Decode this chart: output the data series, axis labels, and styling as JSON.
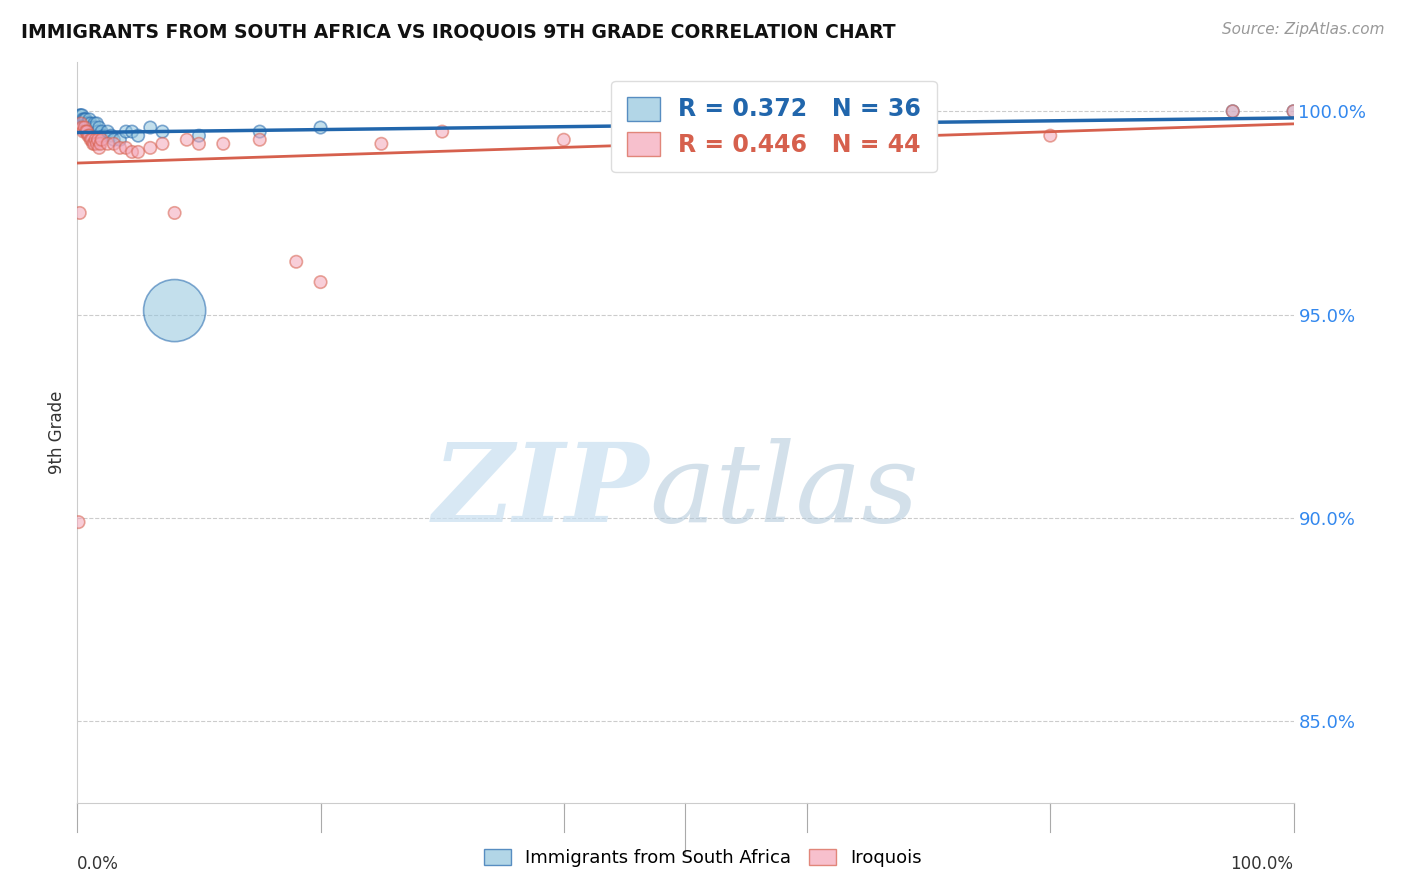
{
  "title": "IMMIGRANTS FROM SOUTH AFRICA VS IROQUOIS 9TH GRADE CORRELATION CHART",
  "source": "Source: ZipAtlas.com",
  "ylabel": "9th Grade",
  "legend_blue_r": "R = 0.372",
  "legend_blue_n": "N = 36",
  "legend_pink_r": "R = 0.446",
  "legend_pink_n": "N = 44",
  "blue_color": "#92c5de",
  "blue_line_color": "#2166ac",
  "pink_color": "#f4a6b8",
  "pink_line_color": "#d6604d",
  "blue_scatter_x": [
    0.2,
    0.3,
    0.4,
    0.4,
    0.5,
    0.6,
    0.7,
    0.7,
    0.8,
    0.9,
    1.0,
    1.1,
    1.2,
    1.3,
    1.4,
    1.5,
    1.6,
    1.7,
    1.8,
    2.0,
    2.2,
    2.5,
    2.8,
    3.0,
    3.5,
    4.0,
    4.5,
    5.0,
    6.0,
    7.0,
    8.0,
    10.0,
    15.0,
    20.0,
    95.0,
    100.0
  ],
  "blue_scatter_y": [
    99.9,
    99.9,
    99.8,
    99.9,
    99.8,
    99.8,
    99.7,
    99.8,
    99.7,
    99.7,
    99.8,
    99.7,
    99.6,
    99.6,
    99.7,
    99.6,
    99.7,
    99.5,
    99.6,
    99.5,
    99.4,
    99.5,
    99.4,
    99.3,
    99.3,
    99.5,
    99.5,
    99.4,
    99.6,
    99.5,
    95.1,
    99.4,
    99.5,
    99.6,
    100.0,
    100.0
  ],
  "blue_scatter_sizes": [
    80,
    80,
    80,
    80,
    80,
    80,
    80,
    80,
    80,
    80,
    80,
    80,
    80,
    80,
    80,
    80,
    80,
    80,
    80,
    80,
    80,
    80,
    80,
    80,
    80,
    80,
    80,
    80,
    80,
    80,
    2000,
    80,
    80,
    80,
    80,
    80
  ],
  "pink_scatter_x": [
    0.1,
    0.2,
    0.3,
    0.4,
    0.5,
    0.6,
    0.7,
    0.8,
    0.9,
    1.0,
    1.1,
    1.2,
    1.3,
    1.4,
    1.5,
    1.6,
    1.7,
    1.8,
    1.9,
    2.0,
    2.5,
    3.0,
    3.5,
    4.0,
    4.5,
    5.0,
    6.0,
    7.0,
    8.0,
    9.0,
    10.0,
    12.0,
    15.0,
    18.0,
    20.0,
    25.0,
    30.0,
    40.0,
    55.0,
    65.0,
    70.0,
    80.0,
    95.0,
    100.0
  ],
  "pink_scatter_y": [
    89.9,
    97.5,
    99.7,
    99.6,
    99.5,
    99.6,
    99.5,
    99.5,
    99.4,
    99.4,
    99.3,
    99.3,
    99.2,
    99.2,
    99.3,
    99.2,
    99.3,
    99.1,
    99.2,
    99.3,
    99.2,
    99.2,
    99.1,
    99.1,
    99.0,
    99.0,
    99.1,
    99.2,
    97.5,
    99.3,
    99.2,
    99.2,
    99.3,
    96.3,
    95.8,
    99.2,
    99.5,
    99.3,
    99.2,
    99.3,
    99.4,
    99.4,
    100.0,
    100.0
  ],
  "pink_scatter_sizes": [
    80,
    80,
    80,
    80,
    80,
    80,
    80,
    80,
    80,
    80,
    80,
    80,
    80,
    80,
    80,
    80,
    80,
    80,
    80,
    80,
    80,
    80,
    80,
    80,
    80,
    80,
    80,
    80,
    80,
    80,
    80,
    80,
    80,
    80,
    80,
    80,
    80,
    80,
    80,
    80,
    80,
    80,
    80,
    80
  ],
  "xlim": [
    0.0,
    100.0
  ],
  "ylim": [
    83.0,
    101.2
  ],
  "ytick_positions": [
    85.0,
    90.0,
    95.0,
    100.0
  ],
  "ytick_labels": [
    "85.0%",
    "90.0%",
    "95.0%",
    "100.0%"
  ],
  "grid_color": "#cccccc",
  "bg_color": "#ffffff",
  "watermark_zip_color": "#c8dff0",
  "watermark_atlas_color": "#b0c8da"
}
